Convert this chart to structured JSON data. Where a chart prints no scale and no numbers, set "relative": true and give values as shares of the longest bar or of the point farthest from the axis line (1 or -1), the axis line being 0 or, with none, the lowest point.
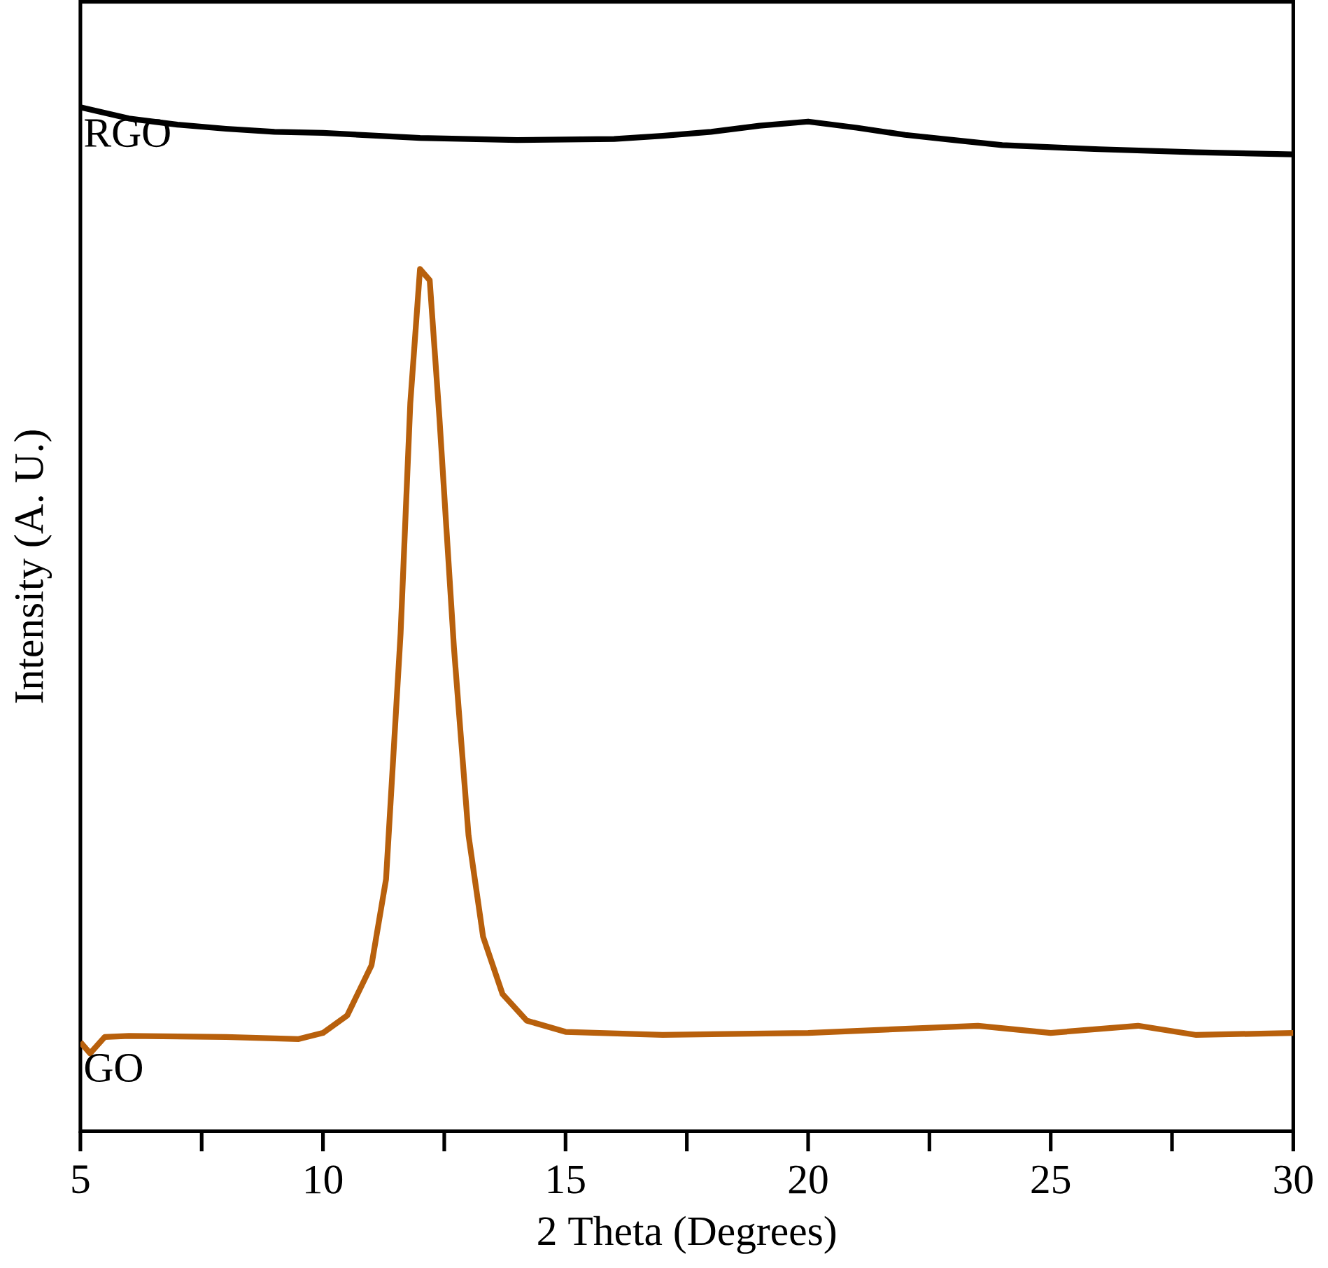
{
  "chart_data": {
    "type": "line",
    "relative": true,
    "xlabel": "2 Theta (Degrees)",
    "ylabel": "Intensity (A. U.)",
    "xlim": [
      5,
      30
    ],
    "xticks": [
      5,
      10,
      15,
      20,
      25,
      30
    ],
    "grid": false,
    "marker": "none",
    "line_style": "solid",
    "series": [
      {
        "name": "RGO",
        "color": "#000000",
        "x": [
          5,
          6,
          7,
          8,
          9,
          10,
          12,
          14,
          16,
          17,
          18,
          19,
          20,
          21,
          22,
          23,
          24,
          26,
          28,
          30
        ],
        "values": [
          1.0,
          0.989,
          0.983,
          0.979,
          0.976,
          0.975,
          0.97,
          0.968,
          0.969,
          0.972,
          0.976,
          0.982,
          0.986,
          0.98,
          0.973,
          0.968,
          0.963,
          0.959,
          0.956,
          0.954
        ]
      },
      {
        "name": "GO",
        "color": "#b8600c",
        "x": [
          5,
          5.2,
          5.5,
          6,
          8,
          9.5,
          10,
          10.5,
          11,
          11.3,
          11.6,
          11.8,
          12,
          12.2,
          12.4,
          12.7,
          13,
          13.3,
          13.7,
          14.2,
          15,
          17,
          20,
          23.5,
          25,
          26.8,
          28,
          30
        ],
        "values": [
          0.087,
          0.076,
          0.092,
          0.093,
          0.092,
          0.09,
          0.096,
          0.113,
          0.162,
          0.246,
          0.486,
          0.711,
          0.842,
          0.831,
          0.697,
          0.472,
          0.289,
          0.19,
          0.134,
          0.108,
          0.097,
          0.094,
          0.096,
          0.103,
          0.096,
          0.103,
          0.094,
          0.096
        ]
      }
    ]
  }
}
